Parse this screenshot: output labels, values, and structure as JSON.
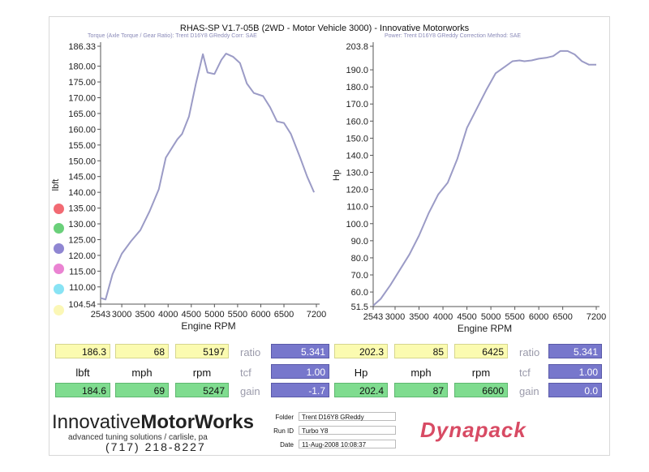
{
  "header": {
    "title": "RHAS-SP V1.7-05B   (2WD - Motor Vehicle 3000)  - Innovative Motorworks",
    "left_info": "Torque (Axle Torque / Gear Ratio): Trent D16Y8 GReddy     Corr: SAE",
    "right_info": "Power: Trent D16Y8 GReddy     Correction Method: SAE"
  },
  "chart_data": [
    {
      "type": "line",
      "xlabel": "Engine RPM",
      "ylabel": "lbft",
      "x_ticks": [
        "2543",
        "3000",
        "3500",
        "4000",
        "4500",
        "5000",
        "5500",
        "6000",
        "6500",
        "7200"
      ],
      "y_ticks": [
        "186.33",
        "180.00",
        "175.00",
        "170.00",
        "165.00",
        "160.00",
        "155.00",
        "150.00",
        "145.00",
        "140.00",
        "135.00",
        "130.00",
        "125.00",
        "120.00",
        "115.00",
        "110.00",
        "104.54"
      ],
      "xlim": [
        2543,
        7200
      ],
      "ylim": [
        104.54,
        186.33
      ],
      "series": [
        {
          "color": "#9b9bc6",
          "x": [
            2543,
            2650,
            2800,
            3000,
            3200,
            3400,
            3600,
            3800,
            3950,
            4100,
            4200,
            4300,
            4450,
            4600,
            4750,
            4850,
            5000,
            5150,
            5250,
            5400,
            5550,
            5700,
            5850,
            6050,
            6200,
            6350,
            6500,
            6650,
            6850,
            7000,
            7150
          ],
          "y": [
            106.5,
            106,
            114,
            120.5,
            124.5,
            128,
            134,
            141,
            151,
            154.5,
            156.8,
            158.5,
            164,
            174.5,
            183.8,
            178,
            177.5,
            182,
            184,
            183,
            181,
            174.5,
            171.5,
            170.5,
            167,
            162.5,
            162,
            158.5,
            151,
            145,
            140
          ]
        }
      ]
    },
    {
      "type": "line",
      "xlabel": "Engine RPM",
      "ylabel": "Hp",
      "x_ticks": [
        "2543",
        "3000",
        "3500",
        "4000",
        "4500",
        "5000",
        "5500",
        "6000",
        "6500",
        "7200"
      ],
      "y_ticks": [
        "203.8",
        "190.0",
        "180.0",
        "170.0",
        "160.0",
        "150.0",
        "140.0",
        "130.0",
        "120.0",
        "110.0",
        "100.0",
        "90.0",
        "80.0",
        "70.0",
        "60.0",
        "51.5"
      ],
      "xlim": [
        2543,
        7200
      ],
      "ylim": [
        51.5,
        203.8
      ],
      "series": [
        {
          "color": "#9b9bc6",
          "x": [
            2543,
            2700,
            2900,
            3100,
            3300,
            3500,
            3700,
            3900,
            4100,
            4300,
            4500,
            4700,
            4900,
            5100,
            5300,
            5450,
            5600,
            5700,
            5850,
            6000,
            6150,
            6300,
            6450,
            6600,
            6750,
            6900,
            7050,
            7200
          ],
          "y": [
            52,
            56,
            64,
            73,
            82,
            93,
            106,
            117,
            124,
            138,
            156,
            167,
            178,
            188,
            192,
            195,
            195.5,
            195,
            195.5,
            196.5,
            197,
            198,
            201,
            201,
            199,
            195,
            193,
            193
          ]
        }
      ]
    }
  ],
  "left_stats": {
    "max_row": [
      "186.3",
      "68",
      "5197"
    ],
    "units": [
      "lbft",
      "mph",
      "rpm"
    ],
    "min_row": [
      "184.6",
      "69",
      "5247"
    ],
    "ratio_label": "ratio",
    "ratio": "5.341",
    "tcf_label": "tcf",
    "tcf": "1.00",
    "gain_label": "gain",
    "gain": "-1.7"
  },
  "right_stats": {
    "max_row": [
      "202.3",
      "85",
      "6425"
    ],
    "units": [
      "Hp",
      "mph",
      "rpm"
    ],
    "min_row": [
      "202.4",
      "87",
      "6600"
    ],
    "ratio_label": "ratio",
    "ratio": "5.341",
    "tcf_label": "tcf",
    "tcf": "1.00",
    "gain_label": "gain",
    "gain": "0.0"
  },
  "legend_dots": [
    "#f26a73",
    "#6ad07a",
    "#8f86d2",
    "#ea83d2",
    "#88e3f4",
    "#fbf7b6"
  ],
  "footer": {
    "logo_light": "Innovative",
    "logo_bold": "MotorWorks",
    "tagline": "advanced tuning solutions / carlisle, pa",
    "phone": "(717) 218-8227",
    "folder_label": "Folder",
    "folder_value": "Trent D16Y8 GReddy",
    "run_label": "Run ID",
    "run_value": "Turbo Y8",
    "date_label": "Date",
    "date_value": "11-Aug-2008  10:08:37",
    "brand": "Dynapack"
  }
}
